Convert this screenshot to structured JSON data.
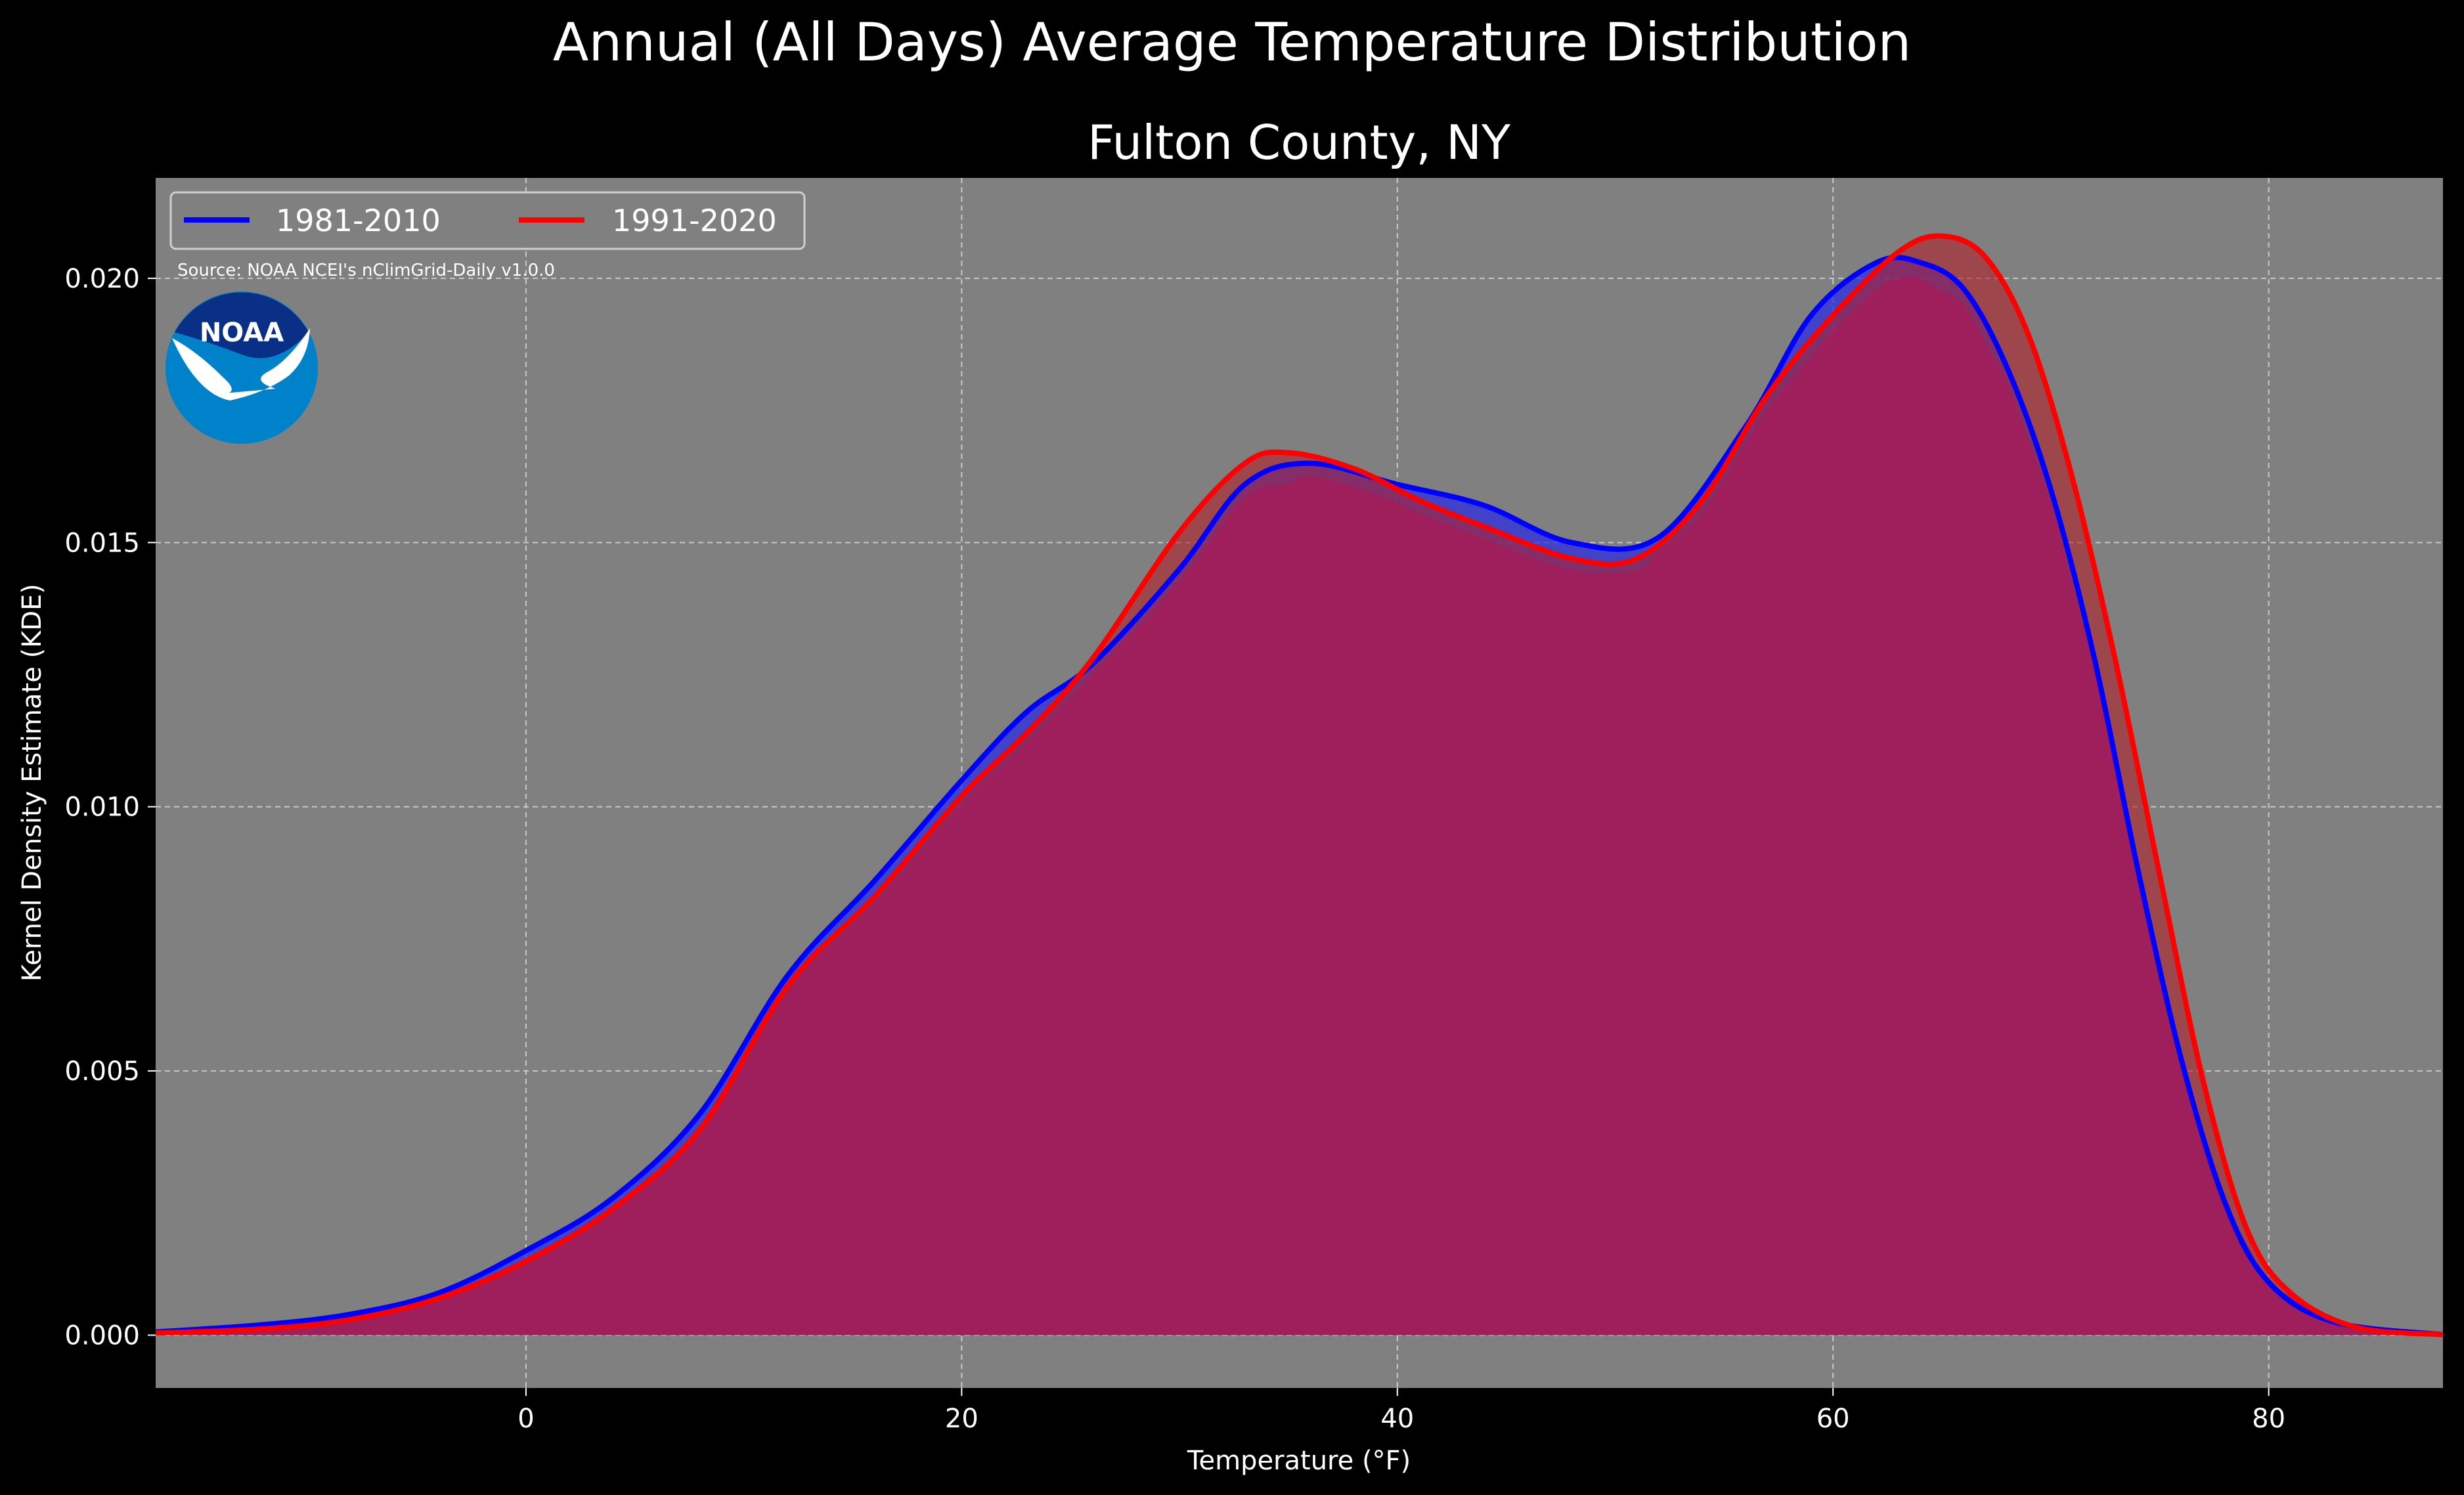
{
  "chart_data": {
    "type": "area",
    "title": "Annual (All Days) Average Temperature Distribution",
    "subtitle": "Fulton County, NY",
    "xlabel": "Temperature ($^\\circ$F)",
    "xlabel_display": "Temperature (°F)",
    "ylabel": "Kernel Density Estimate (KDE)",
    "xlim": [
      -17,
      88
    ],
    "ylim": [
      -0.001,
      0.0219
    ],
    "xticks": [
      0,
      20,
      40,
      60,
      80
    ],
    "xtick_labels": [
      "0",
      "20",
      "40",
      "60",
      "80"
    ],
    "yticks": [
      0.0,
      0.005,
      0.01,
      0.015,
      0.02
    ],
    "ytick_labels": [
      "0.000",
      "0.005",
      "0.010",
      "0.015",
      "0.020"
    ],
    "grid": true,
    "legend_position": "top-left",
    "source_text": "Source: NOAA NCEI's nClimGrid-Daily v1.0.0",
    "logo_text": "NOAA",
    "colors": {
      "background": "#000000",
      "plot_background": "#808080",
      "series_1981": "#0000ff",
      "series_1991": "#ff0000",
      "overlap_fill": "#9e1f5c",
      "logo_dark": "#0a2f87",
      "logo_light": "#0082ca"
    },
    "series": [
      {
        "name": "1981-2010",
        "color": "#0000ff",
        "points": [
          [
            -17,
            6e-05
          ],
          [
            -12,
            0.0002
          ],
          [
            -8,
            0.0004
          ],
          [
            -4,
            0.0008
          ],
          [
            0,
            0.0016
          ],
          [
            4,
            0.0026
          ],
          [
            8,
            0.0042
          ],
          [
            12,
            0.0068
          ],
          [
            16,
            0.0086
          ],
          [
            20,
            0.0105
          ],
          [
            23,
            0.0118
          ],
          [
            26,
            0.0127
          ],
          [
            30,
            0.0145
          ],
          [
            33,
            0.0161
          ],
          [
            36,
            0.0165
          ],
          [
            40,
            0.0161
          ],
          [
            44,
            0.0157
          ],
          [
            48,
            0.015
          ],
          [
            52,
            0.0151
          ],
          [
            56,
            0.0172
          ],
          [
            59,
            0.0193
          ],
          [
            62,
            0.0203
          ],
          [
            64,
            0.0203
          ],
          [
            66,
            0.0198
          ],
          [
            68,
            0.0183
          ],
          [
            70,
            0.016
          ],
          [
            72,
            0.0128
          ],
          [
            74,
            0.0088
          ],
          [
            76,
            0.0052
          ],
          [
            78,
            0.0025
          ],
          [
            80,
            0.001
          ],
          [
            83,
            0.00025
          ],
          [
            88,
            1e-05
          ]
        ]
      },
      {
        "name": "1991-2020",
        "color": "#ff0000",
        "points": [
          [
            -17,
            4e-05
          ],
          [
            -12,
            0.00012
          ],
          [
            -8,
            0.0003
          ],
          [
            -4,
            0.0007
          ],
          [
            0,
            0.0014
          ],
          [
            4,
            0.0024
          ],
          [
            8,
            0.0039
          ],
          [
            12,
            0.0066
          ],
          [
            16,
            0.0083
          ],
          [
            20,
            0.0102
          ],
          [
            23,
            0.0114
          ],
          [
            26,
            0.0128
          ],
          [
            30,
            0.0152
          ],
          [
            33,
            0.0165
          ],
          [
            35,
            0.0167
          ],
          [
            38,
            0.0164
          ],
          [
            41,
            0.0158
          ],
          [
            44,
            0.0153
          ],
          [
            48,
            0.0147
          ],
          [
            51,
            0.0147
          ],
          [
            54,
            0.0158
          ],
          [
            57,
            0.0178
          ],
          [
            60,
            0.0193
          ],
          [
            63,
            0.0205
          ],
          [
            65,
            0.0208
          ],
          [
            67,
            0.0204
          ],
          [
            69,
            0.0189
          ],
          [
            71,
            0.0162
          ],
          [
            73,
            0.0127
          ],
          [
            75,
            0.0087
          ],
          [
            77,
            0.0048
          ],
          [
            79,
            0.002
          ],
          [
            81,
            0.0008
          ],
          [
            84,
            0.00015
          ],
          [
            88,
            1e-05
          ]
        ]
      }
    ]
  }
}
